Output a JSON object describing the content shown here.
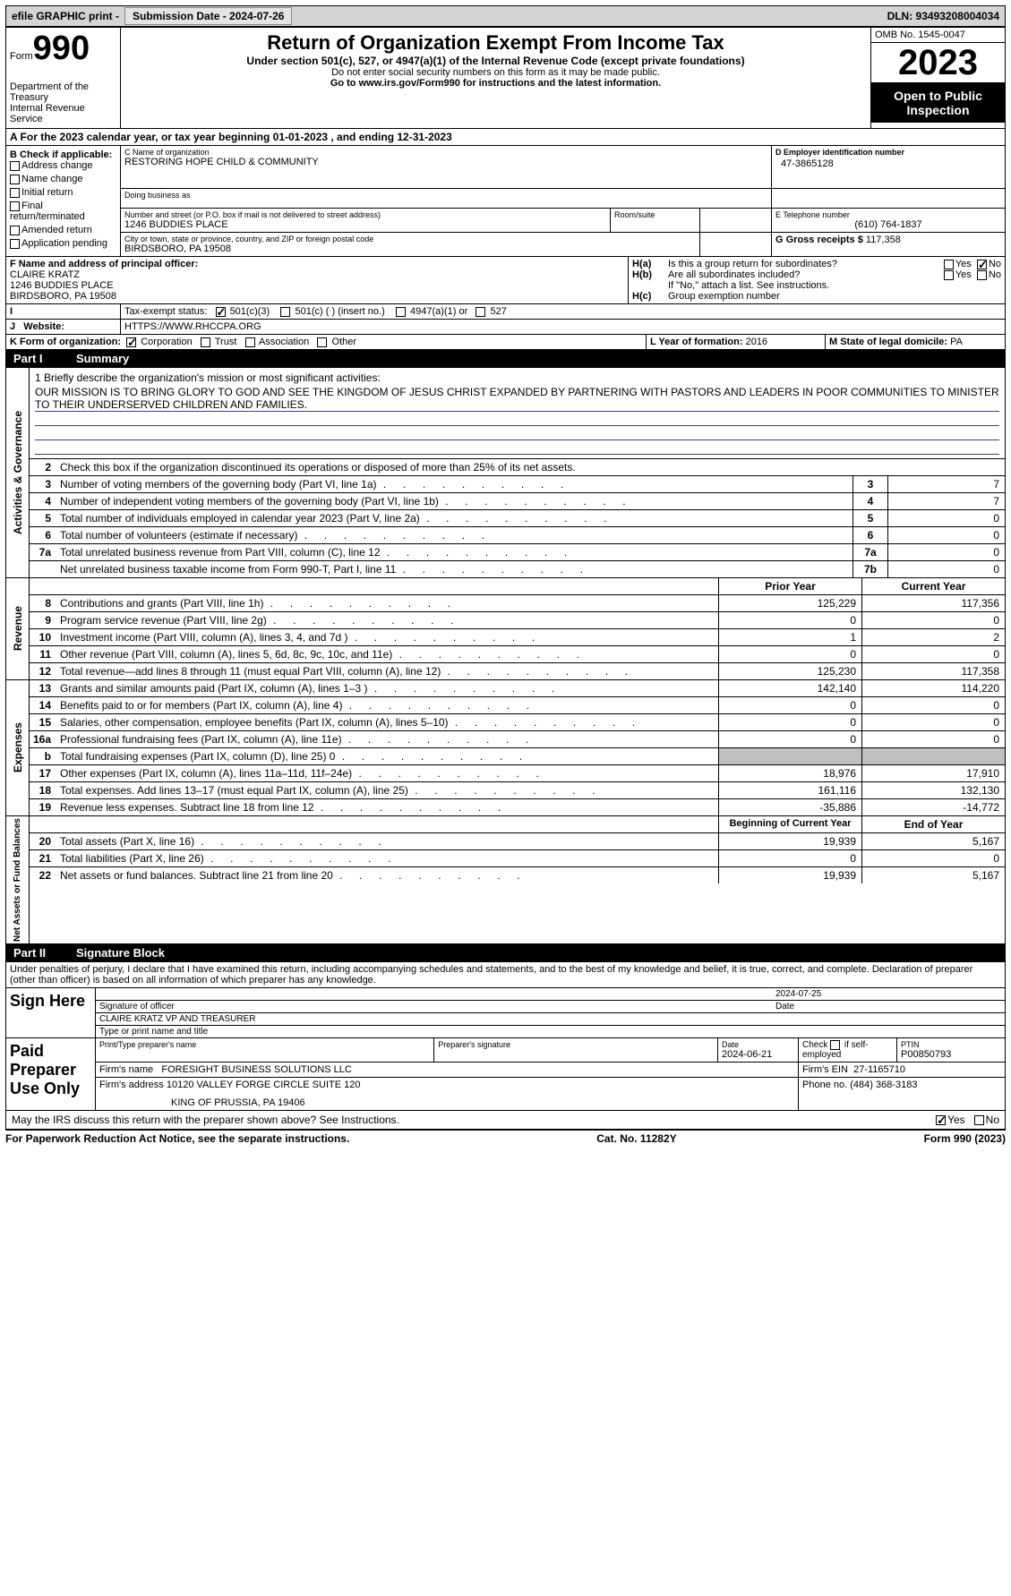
{
  "top": {
    "efile": "efile GRAPHIC print - ",
    "submission": "Submission Date - 2024-07-26",
    "dln": "DLN: 93493208004034"
  },
  "header": {
    "form": "Form",
    "num": "990",
    "title": "Return of Organization Exempt From Income Tax",
    "sub": "Under section 501(c), 527, or 4947(a)(1) of the Internal Revenue Code (except private foundations)",
    "ssn": "Do not enter social security numbers on this form as it may be made public.",
    "goto": "Go to www.irs.gov/Form990 for instructions and the latest information.",
    "dept": "Department of the Treasury",
    "irs": "Internal Revenue Service",
    "omb": "OMB No. 1545-0047",
    "year": "2023",
    "open": "Open to Public Inspection"
  },
  "A": {
    "text": "A For the 2023 calendar year, or tax year beginning 01-01-2023   , and ending 12-31-2023"
  },
  "B": {
    "label": "B Check if applicable:",
    "opts": [
      "Address change",
      "Name change",
      "Initial return",
      "Final return/terminated",
      "Amended return",
      "Application pending"
    ]
  },
  "C": {
    "name_label": "C Name of organization",
    "name": "RESTORING HOPE CHILD & COMMUNITY",
    "dba_label": "Doing business as",
    "street_label": "Number and street (or P.O. box if mail is not delivered to street address)",
    "street": "1246 BUDDIES PLACE",
    "room_label": "Room/suite",
    "city_label": "City or town, state or province, country, and ZIP or foreign postal code",
    "city": "BIRDSBORO, PA  19508"
  },
  "D": {
    "label": "D Employer identification number",
    "val": "47-3865128"
  },
  "E": {
    "label": "E Telephone number",
    "val": "(610) 764-1837"
  },
  "G": {
    "label": "G Gross receipts $",
    "val": "117,358"
  },
  "F": {
    "label": "F  Name and address of principal officer:",
    "name": "CLAIRE KRATZ",
    "street": "1246 BUDDIES PLACE",
    "city": "BIRDSBORO, PA  19508"
  },
  "H": {
    "a": "Is this a group return for subordinates?",
    "b": "Are all subordinates included?",
    "b_note": "If \"No,\" attach a list. See instructions.",
    "c": "Group exemption number"
  },
  "I": {
    "label": "Tax-exempt status:",
    "c3": "501(c)(3)",
    "c": "501(c) (  ) (insert no.)",
    "a1": "4947(a)(1) or",
    "527": "527"
  },
  "J": {
    "label": "Website:",
    "val": "HTTPS://WWW.RHCCPA.ORG"
  },
  "K": {
    "label": "K Form of organization:",
    "corp": "Corporation",
    "trust": "Trust",
    "assoc": "Association",
    "other": "Other"
  },
  "L": {
    "label": "L Year of formation:",
    "val": "2016"
  },
  "M": {
    "label": "M State of legal domicile:",
    "val": "PA"
  },
  "part1": {
    "part": "Part I",
    "title": "Summary"
  },
  "mission": {
    "q": "1  Briefly describe the organization's mission or most significant activities:",
    "text": "OUR MISSION IS TO BRING GLORY TO GOD AND SEE THE KINGDOM OF JESUS CHRIST EXPANDED BY PARTNERING WITH PASTORS AND LEADERS IN POOR COMMUNITIES TO MINISTER TO THEIR UNDERSERVED CHILDREN AND FAMILIES."
  },
  "l2": "Check this box      if the organization discontinued its operations or disposed of more than 25% of its net assets.",
  "gov_lines": [
    {
      "n": "3",
      "t": "Number of voting members of the governing body (Part VI, line 1a)",
      "k": "3",
      "v": "7"
    },
    {
      "n": "4",
      "t": "Number of independent voting members of the governing body (Part VI, line 1b)",
      "k": "4",
      "v": "7"
    },
    {
      "n": "5",
      "t": "Total number of individuals employed in calendar year 2023 (Part V, line 2a)",
      "k": "5",
      "v": "0"
    },
    {
      "n": "6",
      "t": "Total number of volunteers (estimate if necessary)",
      "k": "6",
      "v": "0"
    },
    {
      "n": "7a",
      "t": "Total unrelated business revenue from Part VIII, column (C), line 12",
      "k": "7a",
      "v": "0"
    },
    {
      "n": "",
      "t": "Net unrelated business taxable income from Form 990-T, Part I, line 11",
      "k": "7b",
      "v": "0"
    }
  ],
  "rev_header": {
    "py": "Prior Year",
    "cy": "Current Year"
  },
  "rev_lines": [
    {
      "n": "8",
      "t": "Contributions and grants (Part VIII, line 1h)",
      "py": "125,229",
      "cy": "117,356"
    },
    {
      "n": "9",
      "t": "Program service revenue (Part VIII, line 2g)",
      "py": "0",
      "cy": "0"
    },
    {
      "n": "10",
      "t": "Investment income (Part VIII, column (A), lines 3, 4, and 7d )",
      "py": "1",
      "cy": "2"
    },
    {
      "n": "11",
      "t": "Other revenue (Part VIII, column (A), lines 5, 6d, 8c, 9c, 10c, and 11e)",
      "py": "0",
      "cy": "0"
    },
    {
      "n": "12",
      "t": "Total revenue—add lines 8 through 11 (must equal Part VIII, column (A), line 12)",
      "py": "125,230",
      "cy": "117,358"
    }
  ],
  "exp_lines": [
    {
      "n": "13",
      "t": "Grants and similar amounts paid (Part IX, column (A), lines 1–3 )",
      "py": "142,140",
      "cy": "114,220"
    },
    {
      "n": "14",
      "t": "Benefits paid to or for members (Part IX, column (A), line 4)",
      "py": "0",
      "cy": "0"
    },
    {
      "n": "15",
      "t": "Salaries, other compensation, employee benefits (Part IX, column (A), lines 5–10)",
      "py": "0",
      "cy": "0"
    },
    {
      "n": "16a",
      "t": "Professional fundraising fees (Part IX, column (A), line 11e)",
      "py": "0",
      "cy": "0"
    },
    {
      "n": "b",
      "t": "Total fundraising expenses (Part IX, column (D), line 25) 0",
      "py": "GREY",
      "cy": "GREY"
    },
    {
      "n": "17",
      "t": "Other expenses (Part IX, column (A), lines 11a–11d, 11f–24e)",
      "py": "18,976",
      "cy": "17,910"
    },
    {
      "n": "18",
      "t": "Total expenses. Add lines 13–17 (must equal Part IX, column (A), line 25)",
      "py": "161,116",
      "cy": "132,130"
    },
    {
      "n": "19",
      "t": "Revenue less expenses. Subtract line 18 from line 12",
      "py": "-35,886",
      "cy": "-14,772"
    }
  ],
  "net_header": {
    "py": "Beginning of Current Year",
    "cy": "End of Year"
  },
  "net_lines": [
    {
      "n": "20",
      "t": "Total assets (Part X, line 16)",
      "py": "19,939",
      "cy": "5,167"
    },
    {
      "n": "21",
      "t": "Total liabilities (Part X, line 26)",
      "py": "0",
      "cy": "0"
    },
    {
      "n": "22",
      "t": "Net assets or fund balances. Subtract line 21 from line 20",
      "py": "19,939",
      "cy": "5,167"
    }
  ],
  "part2": {
    "part": "Part II",
    "title": "Signature Block"
  },
  "penalties": "Under penalties of perjury, I declare that I have examined this return, including accompanying schedules and statements, and to the best of my knowledge and belief, it is true, correct, and complete. Declaration of preparer (other than officer) is based on all information of which preparer has any knowledge.",
  "sign": {
    "here": "Sign Here",
    "date": "2024-07-25",
    "sig_of": "Signature of officer",
    "officer": "CLAIRE KRATZ  VP AND TREASURER",
    "type_label": "Type or print name and title",
    "date_label": "Date"
  },
  "paid": {
    "title": "Paid Preparer Use Only",
    "pp_name_l": "Print/Type preparer's name",
    "pp_sig_l": "Preparer's signature",
    "date_l": "Date",
    "date": "2024-06-21",
    "check_l": "Check       if self-employed",
    "ptin_l": "PTIN",
    "ptin": "P00850793",
    "firm_name_l": "Firm's name",
    "firm_name": "FORESIGHT BUSINESS SOLUTIONS LLC",
    "firm_ein_l": "Firm's EIN",
    "firm_ein": "27-1165710",
    "firm_addr_l": "Firm's address",
    "firm_addr1": "10120 VALLEY FORGE CIRCLE SUITE 120",
    "firm_addr2": "KING OF PRUSSIA, PA  19406",
    "phone_l": "Phone no.",
    "phone": "(484) 368-3183"
  },
  "discuss": "May the IRS discuss this return with the preparer shown above? See Instructions.",
  "footer": {
    "pra": "For Paperwork Reduction Act Notice, see the separate instructions.",
    "cat": "Cat. No. 11282Y",
    "form": "Form 990 (2023)"
  },
  "sides": {
    "gov": "Activities & Governance",
    "rev": "Revenue",
    "exp": "Expenses",
    "net": "Net Assets or Fund Balances"
  },
  "yes": "Yes",
  "no": "No"
}
